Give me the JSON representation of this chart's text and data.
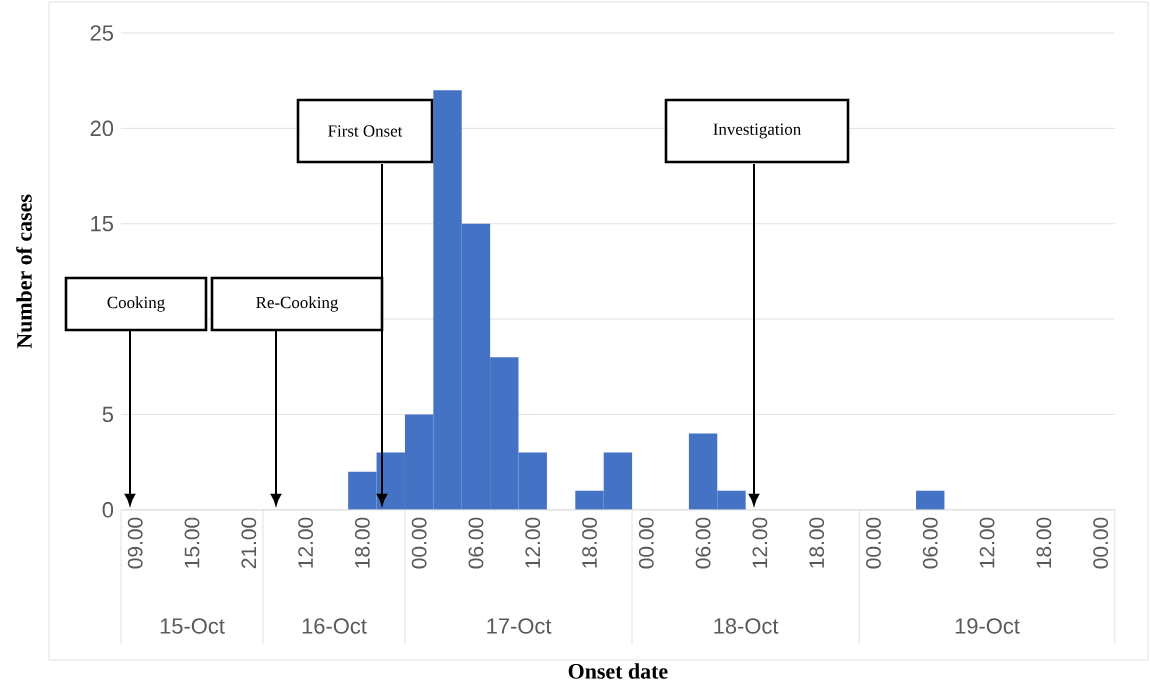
{
  "chart_data": {
    "type": "bar",
    "xlabel": "Onset date",
    "ylabel": "Number of cases",
    "categories": [
      "09.00",
      null,
      "15.00",
      null,
      "21.00",
      null,
      "12.00",
      null,
      "18.00",
      null,
      "00.00",
      null,
      "06.00",
      null,
      "12.00",
      null,
      "18.00",
      null,
      "00.00",
      null,
      "06.00",
      null,
      "12.00",
      null,
      "18.00",
      null,
      "00.00",
      null,
      "06.00",
      null,
      "12.00",
      null,
      "18.00",
      null,
      "00.00"
    ],
    "values": [
      0,
      0,
      0,
      0,
      0,
      0,
      0,
      0,
      2,
      3,
      5,
      22,
      15,
      8,
      3,
      0,
      1,
      3,
      0,
      0,
      4,
      1,
      0,
      0,
      0,
      0,
      0,
      0,
      1,
      0,
      0,
      0,
      0,
      0,
      0
    ],
    "color": "#4472c4",
    "ylim": [
      0,
      25
    ],
    "yticks": [
      0,
      5,
      {
        "value": 10,
        "label": null
      },
      15,
      20,
      25
    ],
    "grid": "y",
    "annotations": [
      "Cooking",
      "Re-Cooking",
      "First Onset",
      "Investigation",
      "15-Oct",
      "16-Oct",
      "17-Oct",
      "18-Oct",
      "19-Oct"
    ]
  }
}
